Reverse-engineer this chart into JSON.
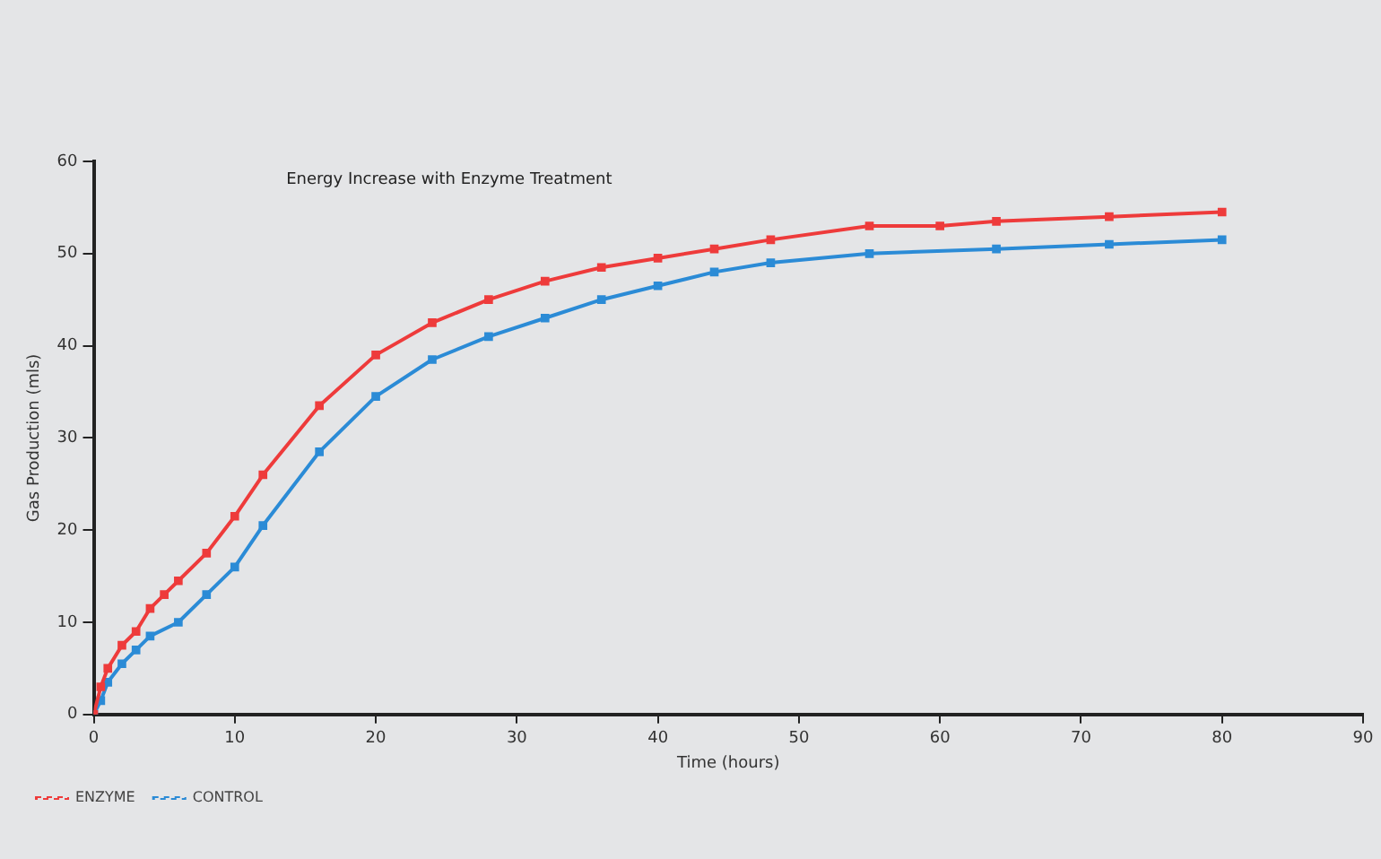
{
  "chart_data": {
    "type": "line",
    "title": "Energy Increase with Enzyme Treatment",
    "xlabel": "Time (hours)",
    "ylabel": "Gas Production (mls)",
    "xlim": [
      0,
      90
    ],
    "xticks": [
      0,
      10,
      20,
      30,
      40,
      50,
      60,
      70,
      80,
      90
    ],
    "ylim": [
      0,
      60
    ],
    "yticks": [
      0,
      10,
      20,
      30,
      40,
      50,
      60
    ],
    "grid": false,
    "legend": "bottom left",
    "marker": "square",
    "line_style": "solid",
    "series": [
      {
        "name": "ENZYME",
        "color": "#ee3b3b",
        "x": [
          0,
          0.5,
          1,
          2,
          3,
          4,
          5,
          6,
          8,
          10,
          12,
          16,
          20,
          24,
          28,
          32,
          36,
          40,
          44,
          48,
          55,
          60,
          64,
          72,
          80
        ],
        "values": [
          0,
          3,
          5,
          7.5,
          9,
          11.5,
          13,
          14.5,
          17.5,
          21.5,
          26,
          33.5,
          39,
          42.5,
          45,
          47,
          48.5,
          49.5,
          50.5,
          51.5,
          53,
          53,
          53.5,
          54,
          54.5
        ]
      },
      {
        "name": "CONTROL",
        "color": "#2b8bd6",
        "x": [
          0,
          0.5,
          1,
          2,
          3,
          4,
          6,
          8,
          10,
          12,
          16,
          20,
          24,
          28,
          32,
          36,
          40,
          44,
          48,
          55,
          64,
          72,
          80
        ],
        "values": [
          0,
          1.5,
          3.5,
          5.5,
          7,
          8.5,
          10,
          13,
          16,
          20.5,
          28.5,
          34.5,
          38.5,
          41,
          43,
          45,
          46.5,
          48,
          49,
          50,
          50.5,
          51,
          51.5
        ]
      }
    ]
  }
}
